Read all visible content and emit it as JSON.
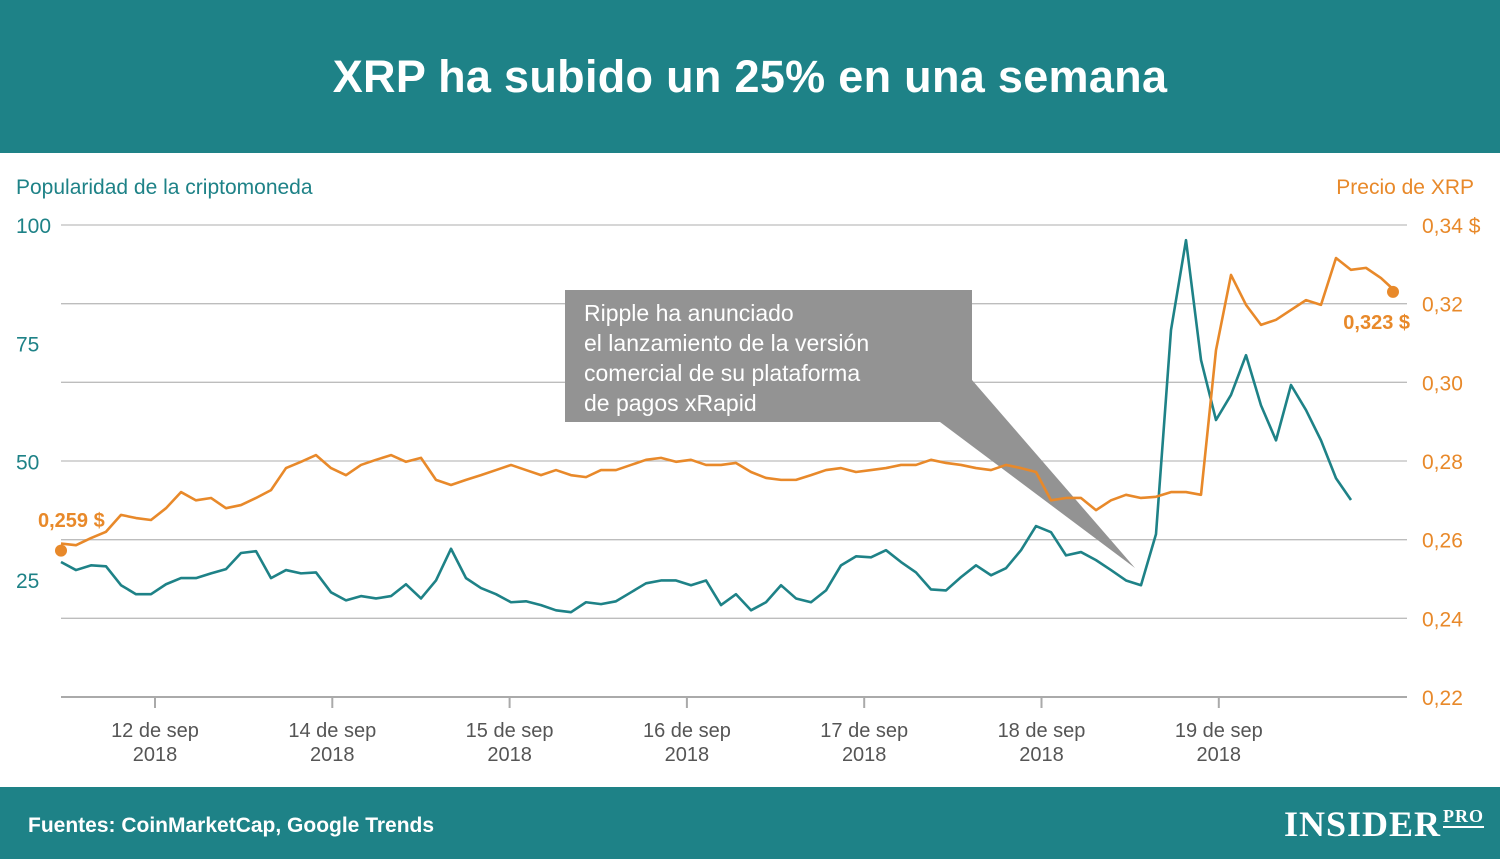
{
  "header": {
    "title": "XRP ha subido un 25% en una semana"
  },
  "footer": {
    "source": "Fuentes: CoinMarketCap, Google Trends",
    "logo": "INSIDER",
    "logo_sup": "PRO"
  },
  "colors": {
    "brand": "#1e8287",
    "popularity": "#1e8287",
    "price": "#e8892a",
    "annotation": "#939393"
  },
  "chart_data": {
    "type": "line",
    "title": "XRP ha subido un 25% en una semana",
    "ylabel_left": "Popularidad de la criptomoneda",
    "ylabel_right": "Precio de XRP",
    "ylim_left": [
      0,
      100
    ],
    "yticks_left": [
      "100",
      "75",
      "50",
      "25"
    ],
    "ylim_right": [
      0.22,
      0.34
    ],
    "yticks_right": [
      "0,34 $",
      "0,32",
      "0,30",
      "0,28",
      "0,26",
      "0,24",
      "0,22"
    ],
    "grid": true,
    "xticks": [
      {
        "day": "12 de sep",
        "year": "2018"
      },
      {
        "day": "14 de sep",
        "year": "2018"
      },
      {
        "day": "15 de sep",
        "year": "2018"
      },
      {
        "day": "16 de sep",
        "year": "2018"
      },
      {
        "day": "17 de sep",
        "year": "2018"
      },
      {
        "day": "18 de sep",
        "year": "2018"
      },
      {
        "day": "19 de sep",
        "year": "2018"
      }
    ],
    "series": [
      {
        "axis": "left",
        "color": "#1e8287",
        "values": [
          28.8,
          27.1,
          28.1,
          27.9,
          23.9,
          22.0,
          22.0,
          24.1,
          25.4,
          25.4,
          26.4,
          27.3,
          30.7,
          31.1,
          25.4,
          27.1,
          26.4,
          26.6,
          22.4,
          20.7,
          21.6,
          21.1,
          21.6,
          24.1,
          21.1,
          24.9,
          31.6,
          25.4,
          23.3,
          22.0,
          20.3,
          20.5,
          19.7,
          18.6,
          18.2,
          20.3,
          19.9,
          20.5,
          22.4,
          24.3,
          24.9,
          24.9,
          23.9,
          24.9,
          19.7,
          22.0,
          18.6,
          20.3,
          23.9,
          21.1,
          20.3,
          22.8,
          28.1,
          30.0,
          29.8,
          31.3,
          28.8,
          26.6,
          23.0,
          22.8,
          25.6,
          28.1,
          26.0,
          27.5,
          31.3,
          36.4,
          35.1,
          30.2,
          30.9,
          29.2,
          27.1,
          24.9,
          23.9,
          34.7,
          77.8,
          96.8,
          71.5,
          58.8,
          64.1,
          72.5,
          61.9,
          54.5,
          66.2,
          60.9,
          54.5,
          46.5,
          41.9
        ]
      },
      {
        "axis": "right",
        "color": "#e8892a",
        "start_label": "0,259 $",
        "end_label": "0,323 $",
        "values": [
          0.259,
          0.2586,
          0.2604,
          0.262,
          0.2663,
          0.2655,
          0.265,
          0.268,
          0.2721,
          0.27,
          0.2706,
          0.268,
          0.2688,
          0.2706,
          0.2726,
          0.2782,
          0.2798,
          0.2815,
          0.2782,
          0.2764,
          0.279,
          0.2803,
          0.2815,
          0.2798,
          0.2808,
          0.2752,
          0.2739,
          0.2752,
          0.2764,
          0.2777,
          0.279,
          0.2777,
          0.2764,
          0.2777,
          0.2764,
          0.2759,
          0.2777,
          0.2777,
          0.279,
          0.2803,
          0.2808,
          0.2798,
          0.2803,
          0.279,
          0.279,
          0.2795,
          0.2772,
          0.2757,
          0.2752,
          0.2752,
          0.2764,
          0.2777,
          0.2782,
          0.2772,
          0.2777,
          0.2782,
          0.279,
          0.279,
          0.2803,
          0.2795,
          0.279,
          0.2782,
          0.2777,
          0.279,
          0.2782,
          0.2772,
          0.27,
          0.2706,
          0.2706,
          0.2675,
          0.27,
          0.2714,
          0.2706,
          0.2709,
          0.2721,
          0.2721,
          0.2714,
          0.3082,
          0.3273,
          0.3197,
          0.3146,
          0.3159,
          0.3184,
          0.3209,
          0.3197,
          0.3316,
          0.3286,
          0.3291,
          0.3265,
          0.323
        ]
      }
    ],
    "annotation": [
      "Ripple ha anunciado",
      "el lanzamiento de la versión",
      "comercial de su plataforma",
      "de pagos xRapid"
    ]
  }
}
